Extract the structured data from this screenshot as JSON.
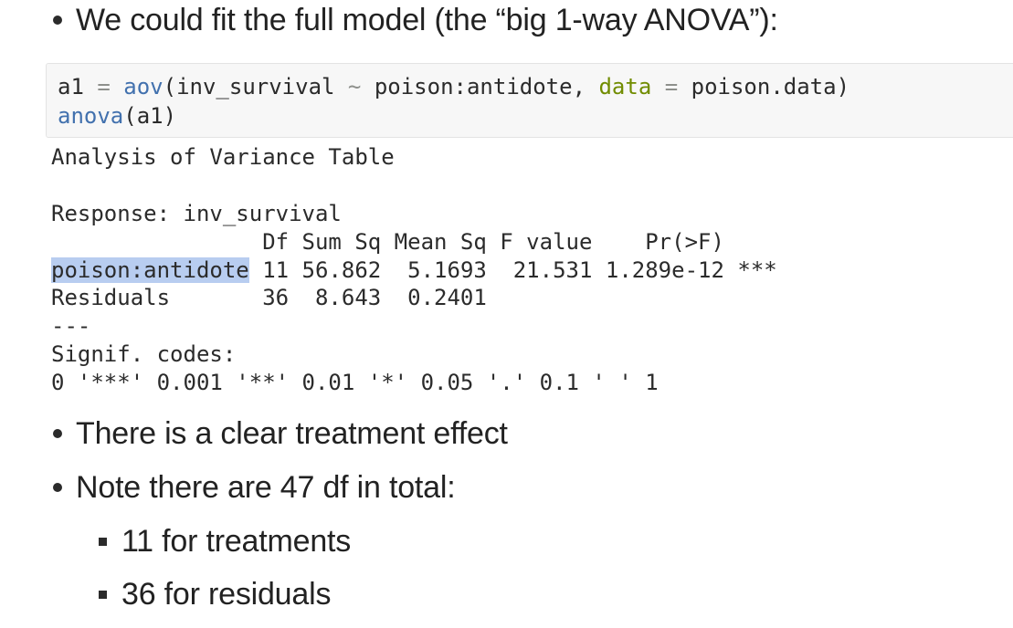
{
  "bullets": {
    "intro": "We could fit the full model (the “big 1-way ANOVA”):",
    "effect": "There is a clear treatment effect",
    "note": "Note there are 47 df in total:",
    "sub_treatments": "11 for treatments",
    "sub_residuals": "36 for residuals"
  },
  "code": {
    "line1": {
      "var": "a1",
      "assign": " = ",
      "fn": "aov",
      "open": "(",
      "lhs": "inv_survival",
      "tilde": " ~ ",
      "rhs": "poison:antidote, ",
      "arg_name": "data",
      "eq": " = ",
      "arg_val": "poison.data)"
    },
    "line2": {
      "fn": "anova",
      "rest": "(a1)"
    }
  },
  "output": {
    "heading": "Analysis of Variance Table",
    "response": "Response: inv_survival",
    "header": "                Df Sum Sq Mean Sq F value    Pr(>F)",
    "row1_term": "poison:antidote",
    "row1_rest": " 11 56.862  5.1693  21.531 1.289e-12 ***",
    "row2": "Residuals       36  8.643  0.2401",
    "separator": "---",
    "signif_label": "Signif. codes:",
    "signif_codes": "0 '***' 0.001 '**' 0.01 '*' 0.05 '.' 0.1 ' ' 1"
  },
  "colors": {
    "function": "#4271ae",
    "argument": "#718c00",
    "operator": "#8e908c",
    "selection": "#b8cdf0",
    "code_background": "#f7f7f7"
  }
}
